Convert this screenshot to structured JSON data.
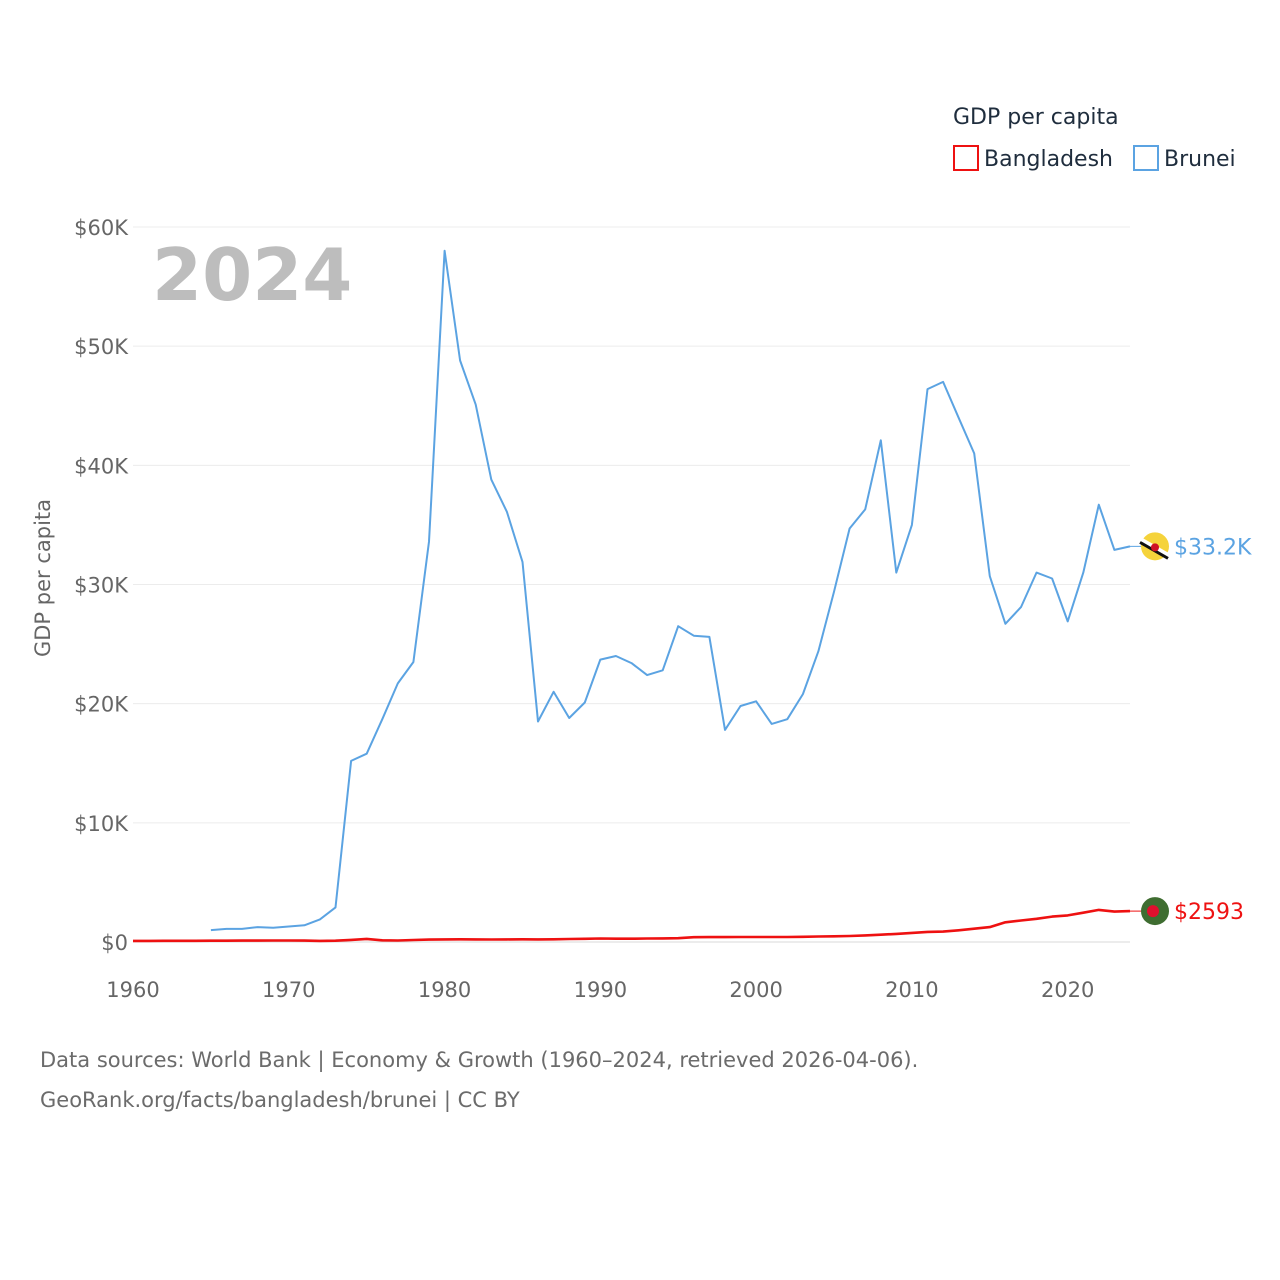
{
  "chart_data": {
    "type": "line",
    "title": "",
    "xlabel": "",
    "ylabel": "GDP per capita",
    "year_label": "2024",
    "legend_title": "GDP per capita",
    "legend_position": "top-right",
    "xlim": [
      1960,
      2024
    ],
    "ylim": [
      0,
      60000
    ],
    "x_ticks": [
      1960,
      1970,
      1980,
      1990,
      2000,
      2010,
      2020
    ],
    "y_ticks": [
      0,
      10000,
      20000,
      30000,
      40000,
      50000,
      60000
    ],
    "y_tick_labels": [
      "$0",
      "$10K",
      "$20K",
      "$30K",
      "$40K",
      "$50K",
      "$60K"
    ],
    "grid": true,
    "series": [
      {
        "name": "Bangladesh",
        "color": "#ee1111",
        "end_label": "$2593",
        "marker_icon": "bangladesh-flag-icon",
        "x": [
          1960,
          1961,
          1962,
          1963,
          1964,
          1965,
          1966,
          1967,
          1968,
          1969,
          1970,
          1971,
          1972,
          1973,
          1974,
          1975,
          1976,
          1977,
          1978,
          1979,
          1980,
          1981,
          1982,
          1983,
          1984,
          1985,
          1986,
          1987,
          1988,
          1989,
          1990,
          1991,
          1992,
          1993,
          1994,
          1995,
          1996,
          1997,
          1998,
          1999,
          2000,
          2001,
          2002,
          2003,
          2004,
          2005,
          2006,
          2007,
          2008,
          2009,
          2010,
          2011,
          2012,
          2013,
          2014,
          2015,
          2016,
          2017,
          2018,
          2019,
          2020,
          2021,
          2022,
          2023,
          2024
        ],
        "values": [
          90,
          95,
          97,
          100,
          100,
          105,
          110,
          115,
          120,
          125,
          130,
          120,
          90,
          110,
          180,
          260,
          140,
          130,
          170,
          200,
          220,
          230,
          220,
          210,
          220,
          230,
          220,
          230,
          250,
          270,
          290,
          280,
          280,
          290,
          300,
          320,
          400,
          410,
          410,
          420,
          420,
          420,
          420,
          440,
          460,
          480,
          500,
          550,
          610,
          680,
          760,
          850,
          870,
          980,
          1120,
          1250,
          1650,
          1800,
          1950,
          2130,
          2230,
          2460,
          2690,
          2550,
          2593
        ]
      },
      {
        "name": "Brunei",
        "color": "#5ba3e2",
        "end_label": "$33.2K",
        "marker_icon": "brunei-flag-icon",
        "x": [
          1965,
          1966,
          1967,
          1968,
          1969,
          1970,
          1971,
          1972,
          1973,
          1974,
          1975,
          1976,
          1977,
          1978,
          1979,
          1980,
          1981,
          1982,
          1983,
          1984,
          1985,
          1986,
          1987,
          1988,
          1989,
          1990,
          1991,
          1992,
          1993,
          1994,
          1995,
          1996,
          1997,
          1998,
          1999,
          2000,
          2001,
          2002,
          2003,
          2004,
          2005,
          2006,
          2007,
          2008,
          2009,
          2010,
          2011,
          2012,
          2013,
          2014,
          2015,
          2016,
          2017,
          2018,
          2019,
          2020,
          2021,
          2022,
          2023,
          2024
        ],
        "values": [
          1000,
          1100,
          1100,
          1250,
          1200,
          1300,
          1400,
          1900,
          2900,
          15200,
          15800,
          18700,
          21700,
          23500,
          33600,
          58000,
          48800,
          45100,
          38800,
          36100,
          31900,
          18500,
          21000,
          18800,
          20100,
          23700,
          24000,
          23400,
          22400,
          22800,
          26500,
          25700,
          25600,
          17800,
          19800,
          20200,
          18300,
          18700,
          20800,
          24400,
          29400,
          34700,
          36300,
          42100,
          31000,
          35000,
          46400,
          47000,
          44000,
          41000,
          30700,
          26700,
          28100,
          31000,
          30500,
          26900,
          31000,
          36700,
          32900,
          33200
        ]
      }
    ]
  },
  "footer": {
    "line1": "Data sources: World Bank | Economy & Growth (1960–2024, retrieved 2026-04-06).",
    "line2": "GeoRank.org/facts/bangladesh/brunei | CC BY"
  }
}
